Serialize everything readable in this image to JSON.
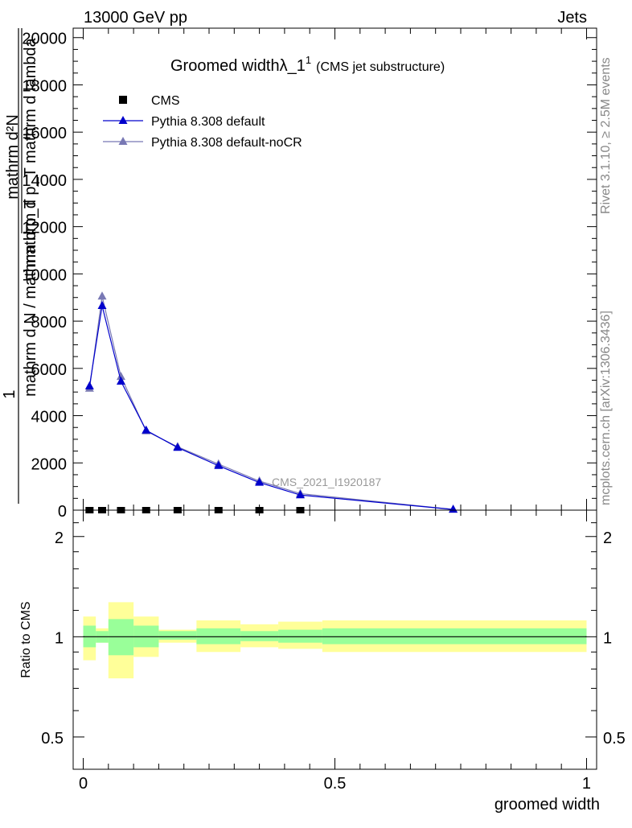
{
  "header": {
    "left": "13000 GeV pp",
    "right": "Jets"
  },
  "side": {
    "rivet": "Rivet 3.1.10, ≥ 2.5M events",
    "mcplots": "mcplots.cern.ch [arXiv:1306.3436]"
  },
  "colors": {
    "cms": "#000000",
    "pythia_default": "#0000cc",
    "pythia_nocr": "#7878b4",
    "band_inner": "#99ff99",
    "band_outer": "#ffff99"
  },
  "chart_data": [
    {
      "type": "line",
      "title": "Groomed widthλ_1",
      "title_sup": "1",
      "subtitle": "(CMS jet substructure)",
      "ylabel_numerator": "1",
      "ylabel_a": "mathrm d²N",
      "ylabel_b": "mathrm d p_T mathrm d lambda",
      "ylabel_c": "mathrm d N / mathrm d p_T",
      "watermark": "CMS_2021_I1920187",
      "xlim": [
        -0.02,
        1.02
      ],
      "ylim": [
        0,
        20400
      ],
      "yticks": [
        0,
        2000,
        4000,
        6000,
        8000,
        10000,
        12000,
        14000,
        16000,
        18000,
        20000
      ],
      "ytick_labels": [
        "0",
        "2000",
        "4000",
        "6000",
        "8000",
        "10000",
        "12000",
        "14000",
        "16000",
        "18000",
        "20000"
      ],
      "legend_position": "top-left",
      "series": [
        {
          "name": "CMS",
          "marker": "square",
          "x": [
            0.0125,
            0.0375,
            0.075,
            0.125,
            0.1875,
            0.2688,
            0.35,
            0.4313
          ],
          "y": [
            0,
            0,
            0,
            0,
            0,
            0,
            0,
            0
          ]
        },
        {
          "name": "Pythia 8.308 default",
          "marker": "triangle",
          "x": [
            0.0125,
            0.0375,
            0.075,
            0.125,
            0.1875,
            0.2688,
            0.35,
            0.4313,
            0.735
          ],
          "y": [
            5250,
            8650,
            5450,
            3380,
            2650,
            1880,
            1170,
            640,
            30
          ]
        },
        {
          "name": "Pythia 8.308 default-noCR",
          "marker": "triangle",
          "x": [
            0.0125,
            0.0375,
            0.075,
            0.125,
            0.1875,
            0.2688,
            0.35,
            0.4313,
            0.735
          ],
          "y": [
            5150,
            9050,
            5650,
            3350,
            2680,
            1950,
            1230,
            700,
            30
          ]
        }
      ]
    },
    {
      "type": "area",
      "ylabel": "Ratio to CMS",
      "xlabel": "groomed width",
      "log_y": true,
      "ylim": [
        0.4,
        2.4
      ],
      "yticks": [
        0.5,
        1,
        2
      ],
      "ytick_labels": [
        "0.5",
        "1",
        "2"
      ],
      "xticks": [
        0,
        0.5,
        1
      ],
      "xtick_labels": [
        "0",
        "0.5",
        "1"
      ],
      "reference": 1,
      "bins": [
        {
          "x0": 0.0,
          "x1": 0.025,
          "inner": [
            0.93,
            1.08
          ],
          "outer": [
            0.85,
            1.15
          ]
        },
        {
          "x0": 0.025,
          "x1": 0.05,
          "inner": [
            0.96,
            1.04
          ],
          "outer": [
            0.96,
            1.06
          ]
        },
        {
          "x0": 0.05,
          "x1": 0.1,
          "inner": [
            0.88,
            1.13
          ],
          "outer": [
            0.75,
            1.27
          ]
        },
        {
          "x0": 0.1,
          "x1": 0.15,
          "inner": [
            0.93,
            1.08
          ],
          "outer": [
            0.87,
            1.15
          ]
        },
        {
          "x0": 0.15,
          "x1": 0.225,
          "inner": [
            0.98,
            1.04
          ],
          "outer": [
            0.96,
            1.05
          ]
        },
        {
          "x0": 0.225,
          "x1": 0.3125,
          "inner": [
            0.95,
            1.06
          ],
          "outer": [
            0.9,
            1.12
          ]
        },
        {
          "x0": 0.3125,
          "x1": 0.3875,
          "inner": [
            0.97,
            1.04
          ],
          "outer": [
            0.93,
            1.09
          ]
        },
        {
          "x0": 0.3875,
          "x1": 0.475,
          "inner": [
            0.96,
            1.05
          ],
          "outer": [
            0.92,
            1.11
          ]
        },
        {
          "x0": 0.475,
          "x1": 1.0,
          "inner": [
            0.95,
            1.06
          ],
          "outer": [
            0.9,
            1.12
          ]
        }
      ]
    }
  ]
}
